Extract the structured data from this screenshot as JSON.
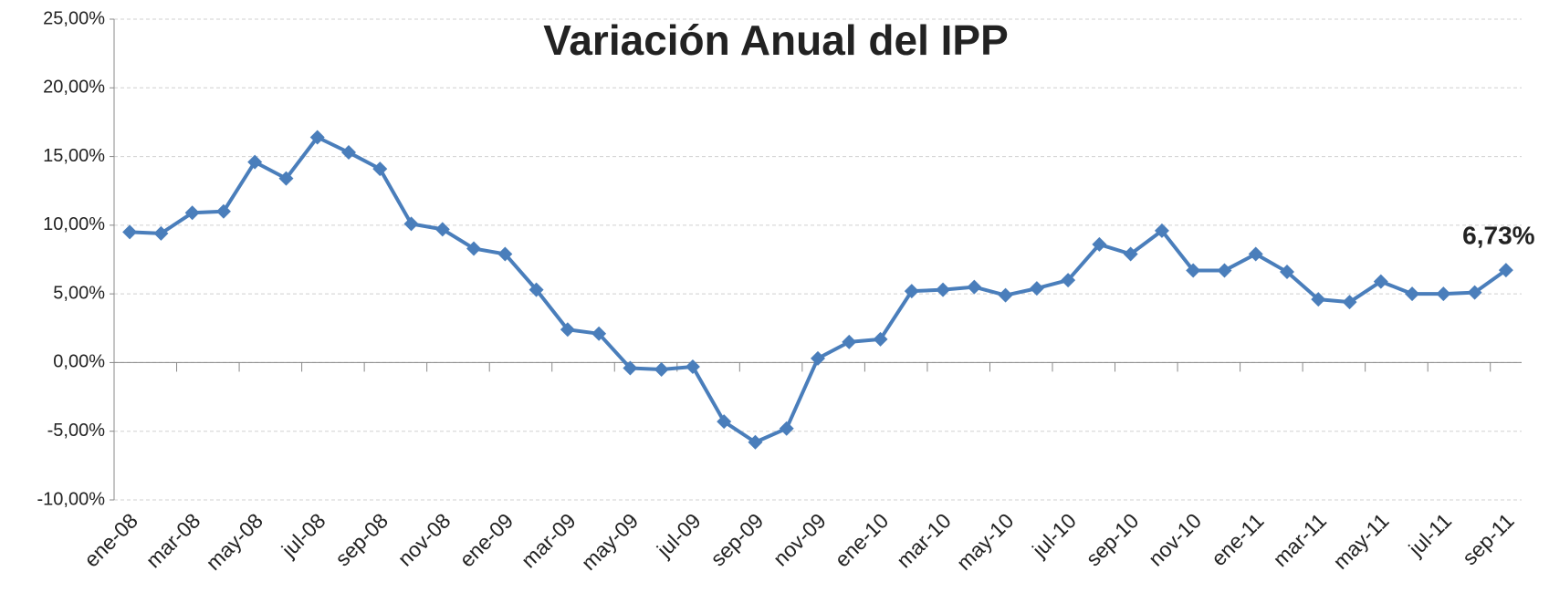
{
  "chart_data": {
    "type": "line",
    "title": "Variación Anual del IPP",
    "categories": [
      "ene-08",
      null,
      "mar-08",
      null,
      "may-08",
      null,
      "jul-08",
      null,
      "sep-08",
      null,
      "nov-08",
      null,
      "ene-09",
      null,
      "mar-09",
      null,
      "may-09",
      null,
      "jul-09",
      null,
      "sep-09",
      null,
      "nov-09",
      null,
      "ene-10",
      null,
      "mar-10",
      null,
      "may-10",
      null,
      "jul-10",
      null,
      "sep-10",
      null,
      "nov-10",
      null,
      "ene-11",
      null,
      "mar-11",
      null,
      "may-11",
      null,
      "jul-11",
      null,
      "sep-11"
    ],
    "series": [
      {
        "color": "#4a7ebb",
        "values": [
          9.5,
          9.4,
          10.9,
          11.0,
          14.6,
          13.4,
          16.4,
          15.3,
          14.1,
          10.1,
          9.7,
          8.3,
          7.9,
          5.3,
          2.4,
          2.1,
          -0.4,
          -0.5,
          -0.3,
          -4.3,
          -5.8,
          -4.8,
          0.3,
          1.5,
          1.7,
          5.2,
          5.3,
          5.5,
          4.9,
          5.4,
          6.0,
          8.6,
          7.9,
          9.6,
          6.7,
          6.7,
          7.9,
          6.6,
          4.6,
          4.4,
          5.9,
          5.0,
          5.0,
          5.1,
          6.73
        ],
        "value_labels": [
          null,
          null,
          null,
          null,
          null,
          null,
          null,
          null,
          null,
          null,
          null,
          null,
          null,
          null,
          null,
          null,
          null,
          null,
          null,
          null,
          null,
          null,
          null,
          null,
          null,
          null,
          null,
          null,
          null,
          null,
          null,
          null,
          null,
          null,
          null,
          null,
          null,
          null,
          null,
          null,
          null,
          null,
          null,
          null,
          "6,73%"
        ]
      }
    ],
    "ylim": [
      -10,
      25
    ],
    "yticks": [
      {
        "value": -10,
        "label": "-10,00%"
      },
      {
        "value": -5,
        "label": "-5,00%"
      },
      {
        "value": 0,
        "label": "0,00%"
      },
      {
        "value": 5,
        "label": "5,00%"
      },
      {
        "value": 10,
        "label": "10,00%"
      },
      {
        "value": 15,
        "label": "15,00%"
      },
      {
        "value": 20,
        "label": "20,00%"
      },
      {
        "value": 25,
        "label": "25,00%"
      }
    ],
    "grid": true
  }
}
